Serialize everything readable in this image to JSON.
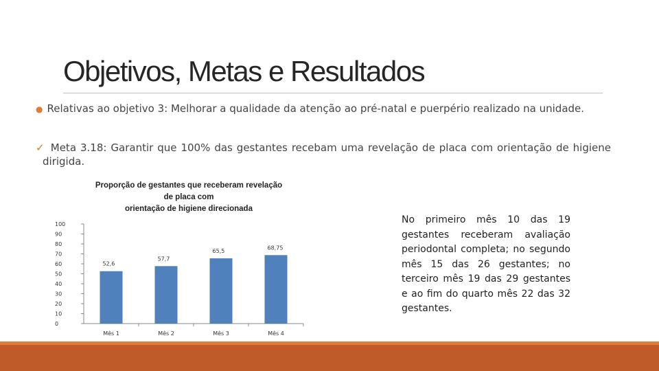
{
  "slide": {
    "title": "Objetivos, Metas e Resultados",
    "paragraph1": "Relativas ao objetivo 3: Melhorar a qualidade da atenção ao pré-natal  e puerpério realizado na unidade.",
    "paragraph2": "Meta 3.18: Garantir que 100% das gestantes recebam uma revelação de placa com orientação de higiene dirigida.",
    "side_text": "No primeiro mês 10 das 19 gestantes receberam avaliação periodontal completa; no segundo mês 15 das 26 gestantes; no terceiro mês 19 das 29 gestantes e ao fim do quarto mês 22 das 32 gestantes.",
    "bullet_icon": "bullet-icon",
    "check_icon": "checkmark-icon"
  },
  "colors": {
    "bar": "#4f81bd",
    "accent": "#e07b39",
    "footer": "#bf5a29"
  },
  "chart_data": {
    "type": "bar",
    "title_lines": [
      "Proporção de gestantes que receberam revelação",
      "de placa com",
      "orientação de higiene direcionada"
    ],
    "categories": [
      "Mês 1",
      "Mês 2",
      "Mês 3",
      "Mês 4"
    ],
    "values": [
      52.6,
      57.7,
      65.5,
      68.75
    ],
    "data_labels": [
      "52,6",
      "57,7",
      "65,5",
      "68,75"
    ],
    "yticks": [
      "0",
      "10",
      "20",
      "30",
      "40",
      "50",
      "60",
      "70",
      "80",
      "90",
      "100"
    ],
    "ylim": [
      0,
      100
    ],
    "grid": false,
    "legend": "none"
  }
}
